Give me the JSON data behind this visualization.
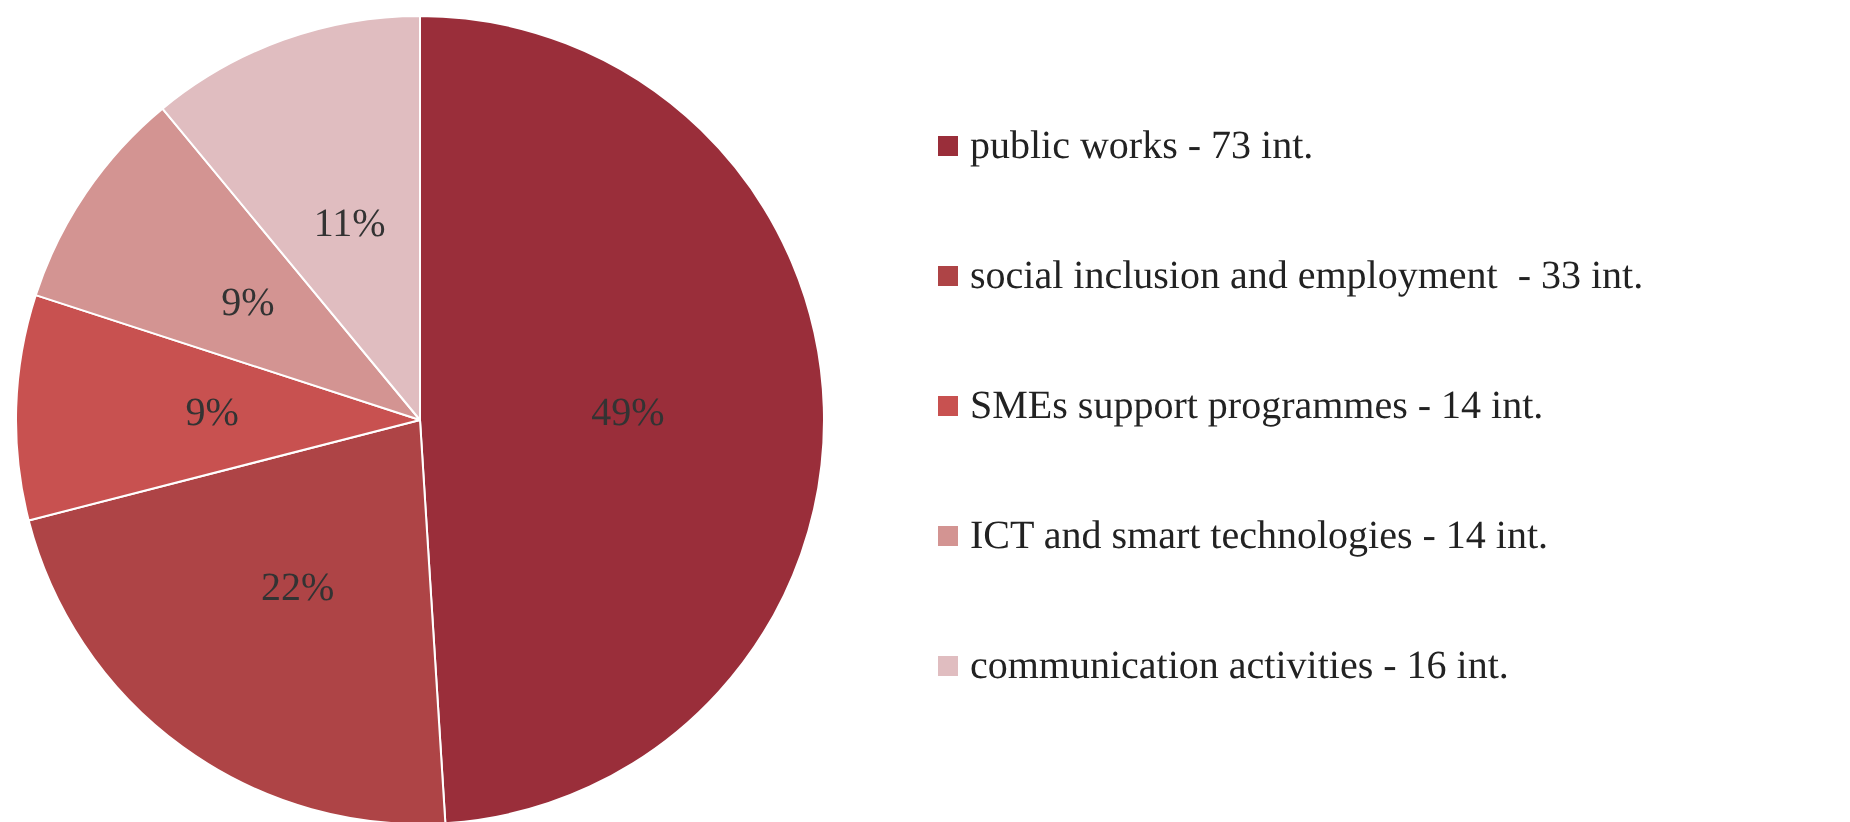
{
  "chart_data": {
    "type": "pie",
    "categories": [
      "public works - 73 int.",
      "social inclusion and employment  - 33 int.",
      "SMEs support programmes - 14 int.",
      "ICT and smart technologies - 14 int.",
      "communication activities - 16 int."
    ],
    "values": [
      49,
      22,
      9,
      9,
      11
    ],
    "value_labels": [
      "49%",
      "22%",
      "9%",
      "9%",
      "11%"
    ],
    "colors": [
      "#9a2e3a",
      "#ae4446",
      "#c85150",
      "#d39492",
      "#e0bdc0"
    ],
    "legend": "right"
  }
}
